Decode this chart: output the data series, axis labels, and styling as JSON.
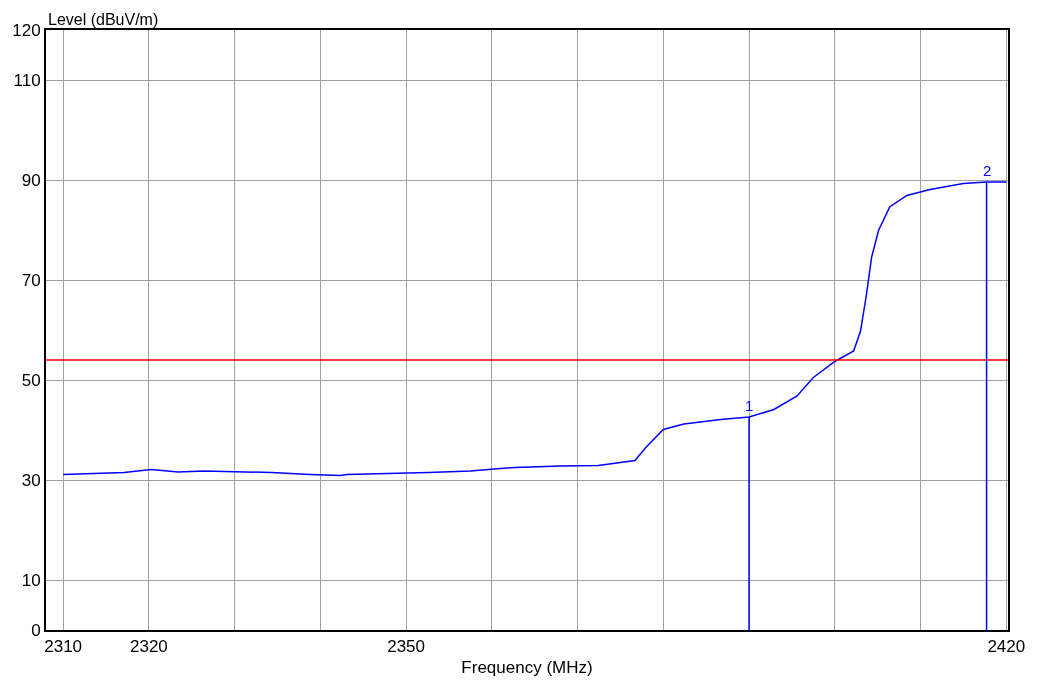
{
  "chart_data": {
    "type": "line",
    "xlabel": "Frequency (MHz)",
    "ylabel": "Level (dBuV/m)",
    "xlim": [
      2308,
      2420.2
    ],
    "ylim": [
      0,
      120
    ],
    "xticks": [
      2310,
      2320,
      {
        "value": 2330,
        "label": null
      },
      {
        "value": 2340,
        "label": null
      },
      2350,
      {
        "value": 2360,
        "label": null
      },
      {
        "value": 2370,
        "label": null
      },
      {
        "value": 2380,
        "label": null
      },
      {
        "value": 2390,
        "label": null
      },
      {
        "value": 2400,
        "label": null
      },
      {
        "value": 2410,
        "label": null
      },
      2420
    ],
    "yticks": [
      0,
      10,
      30,
      50,
      70,
      90,
      110,
      120
    ],
    "grid": true,
    "marker": "none",
    "line_style": "solid",
    "series": [
      {
        "color": "#0000ff",
        "x": [
          2310,
          2317.1,
          2320.3,
          2323.4,
          2326.4,
          2334.3,
          2338.8,
          2342.3,
          2343.1,
          2352.6,
          2357.5,
          2360.3,
          2362.7,
          2368,
          2372.4,
          2376.7,
          2377.9,
          2380,
          2382.4,
          2386.7,
          2390,
          2392.9,
          2395.6,
          2397.5,
          2400,
          2402.2,
          2403,
          2403.7,
          2404.3,
          2405.1,
          2406.4,
          2408.4,
          2411.1,
          2415,
          2417.7,
          2420
        ],
        "values": [
          31.1,
          31.5,
          32.1,
          31.6,
          31.8,
          31.5,
          31.1,
          30.9,
          31.1,
          31.5,
          31.8,
          32.2,
          32.5,
          32.8,
          32.9,
          33.9,
          36.4,
          40.1,
          41.2,
          42.1,
          42.6,
          44.1,
          46.8,
          50.5,
          53.7,
          55.8,
          59.8,
          67.2,
          74.6,
          79.9,
          84.6,
          86.9,
          88.1,
          89.3,
          89.6,
          89.6
        ]
      }
    ],
    "ref_lines": [
      {
        "axis": "y",
        "value": 54,
        "color": "#ff0000"
      }
    ],
    "annotations": [
      {
        "text": "1",
        "x": 2390,
        "y": 42.6
      },
      {
        "text": "2",
        "x": 2417.7,
        "y": 89.6
      }
    ]
  }
}
